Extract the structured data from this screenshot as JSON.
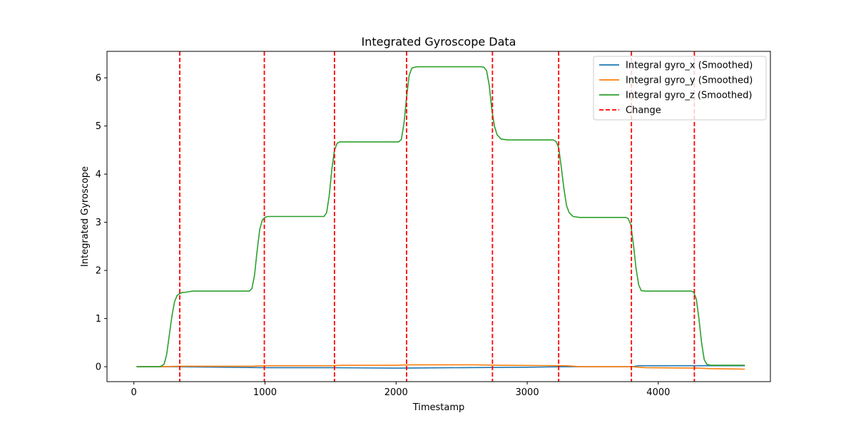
{
  "chart_data": {
    "type": "line",
    "title": "Integrated Gyroscope Data",
    "xlabel": "Timestamp",
    "ylabel": "Integrated Gyroscope",
    "xlim": [
      -205,
      4855
    ],
    "ylim": [
      -0.31,
      6.55
    ],
    "x_ticks": [
      0,
      1000,
      2000,
      3000,
      4000
    ],
    "y_ticks": [
      0,
      1,
      2,
      3,
      4,
      5,
      6
    ],
    "grid": false,
    "legend_position": "top-right",
    "series": [
      {
        "name": "Integral gyro_x (Smoothed)",
        "color": "#1f77b4",
        "x": [
          20,
          300,
          700,
          1000,
          1500,
          2000,
          2500,
          3000,
          3300,
          3800,
          3850,
          4300,
          4660
        ],
        "y": [
          0,
          0,
          -0.01,
          -0.02,
          -0.02,
          -0.03,
          -0.02,
          -0.01,
          0,
          0,
          0.02,
          0.02,
          0.02
        ]
      },
      {
        "name": "Integral gyro_y (Smoothed)",
        "color": "#ff7f0e",
        "x": [
          20,
          200,
          350,
          900,
          1000,
          1500,
          1600,
          2000,
          2100,
          2600,
          2800,
          3300,
          3400,
          3800,
          3900,
          4300,
          4400,
          4660
        ],
        "y": [
          0,
          0,
          0.01,
          0.01,
          0.02,
          0.02,
          0.03,
          0.03,
          0.04,
          0.04,
          0.03,
          0.02,
          0,
          0,
          -0.02,
          -0.03,
          -0.04,
          -0.05
        ]
      },
      {
        "name": "Integral gyro_z (Smoothed)",
        "color": "#2ca02c",
        "x": [
          20,
          200,
          230,
          250,
          270,
          290,
          310,
          330,
          350,
          370,
          400,
          450,
          880,
          900,
          920,
          940,
          960,
          980,
          1000,
          1020,
          1050,
          1080,
          1450,
          1470,
          1490,
          1510,
          1530,
          1550,
          1570,
          1600,
          2020,
          2040,
          2060,
          2080,
          2100,
          2120,
          2140,
          2160,
          2200,
          2650,
          2670,
          2690,
          2710,
          2730,
          2750,
          2770,
          2800,
          2850,
          3200,
          3220,
          3240,
          3260,
          3280,
          3300,
          3320,
          3350,
          3400,
          3750,
          3770,
          3790,
          3810,
          3830,
          3850,
          3870,
          3900,
          4250,
          4270,
          4290,
          4310,
          4330,
          4350,
          4370,
          4400,
          4450,
          4660
        ],
        "y": [
          0,
          0,
          0.05,
          0.25,
          0.65,
          1.05,
          1.35,
          1.48,
          1.52,
          1.54,
          1.55,
          1.57,
          1.57,
          1.62,
          1.9,
          2.4,
          2.85,
          3.05,
          3.1,
          3.12,
          3.12,
          3.12,
          3.12,
          3.2,
          3.55,
          4.1,
          4.5,
          4.64,
          4.67,
          4.67,
          4.67,
          4.72,
          5.05,
          5.6,
          6.05,
          6.2,
          6.22,
          6.23,
          6.23,
          6.23,
          6.22,
          6.15,
          5.85,
          5.35,
          5.0,
          4.82,
          4.73,
          4.71,
          4.71,
          4.68,
          4.55,
          4.15,
          3.7,
          3.35,
          3.2,
          3.12,
          3.1,
          3.1,
          3.08,
          2.95,
          2.55,
          2.05,
          1.7,
          1.58,
          1.57,
          1.57,
          1.55,
          1.4,
          1.0,
          0.5,
          0.15,
          0.05,
          0.03,
          0.03,
          0.03
        ]
      }
    ],
    "change_points": {
      "name": "Change",
      "color": "#ff0000",
      "x": [
        350,
        995,
        1530,
        2080,
        2735,
        3240,
        3795,
        4275
      ]
    }
  }
}
